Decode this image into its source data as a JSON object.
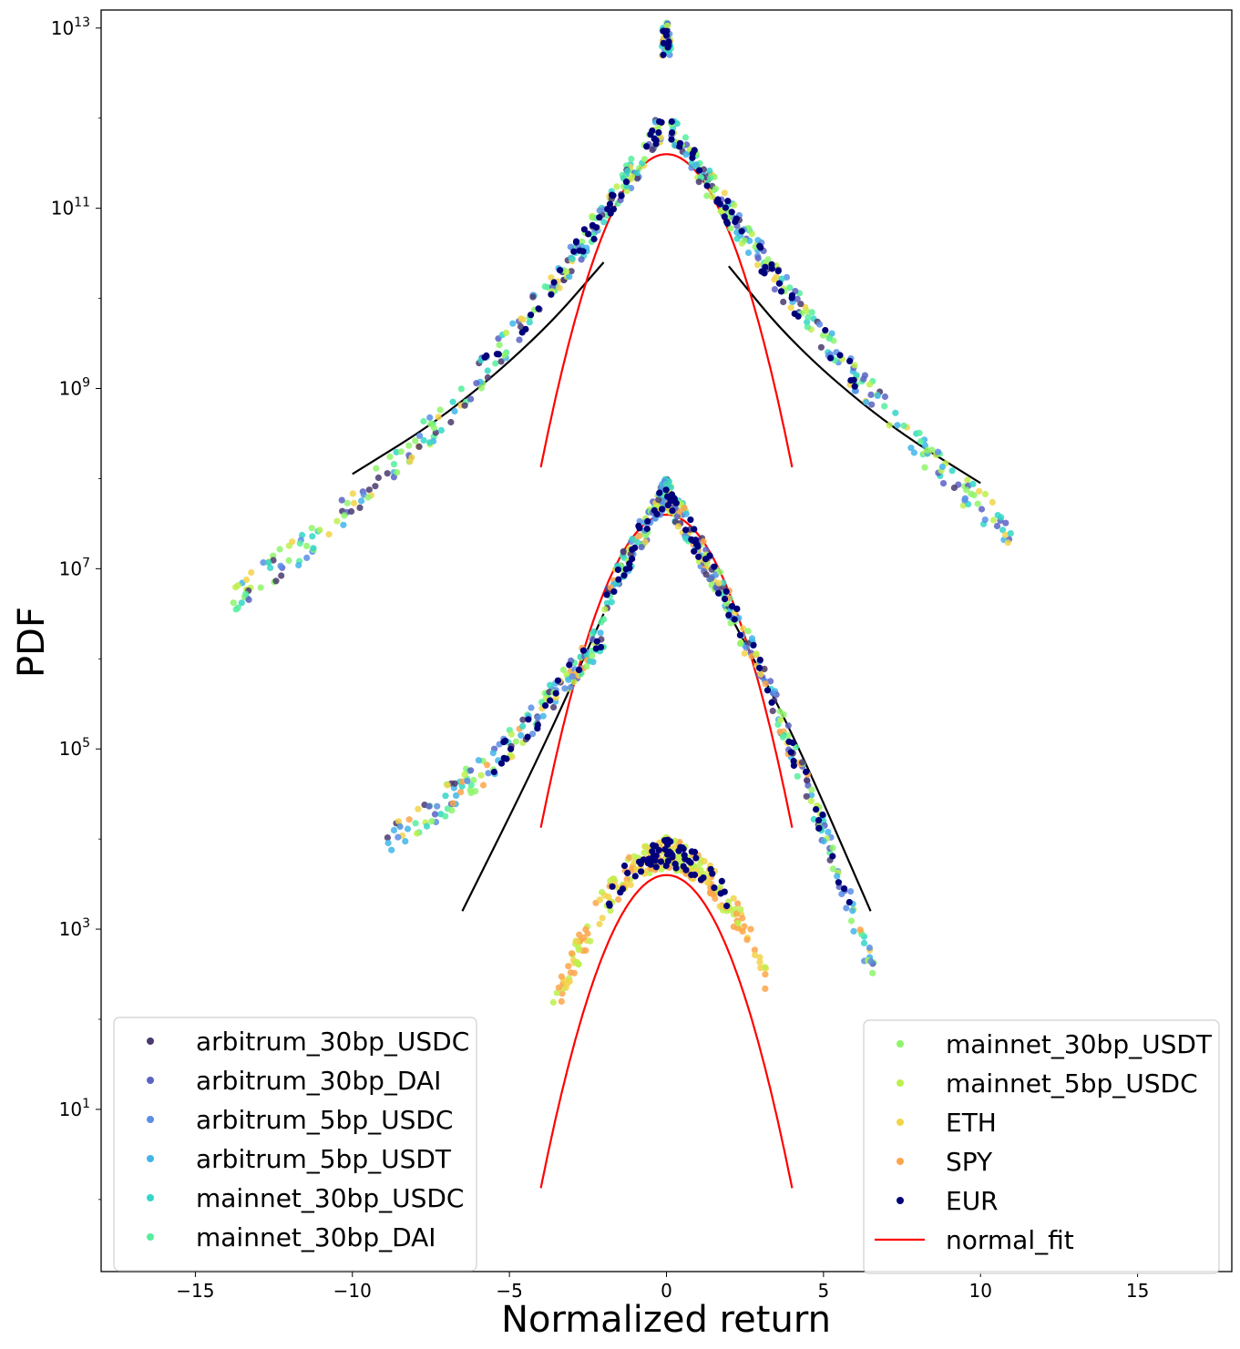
{
  "chart_data": {
    "type": "scatter",
    "title": "",
    "xlabel": "Normalized return",
    "ylabel": "PDF",
    "xlim": [
      -18,
      18
    ],
    "ylim_log10": [
      -0.8,
      13.2
    ],
    "y_scale": "log",
    "x_ticks": [
      {
        "v": -15,
        "label": "−15"
      },
      {
        "v": -10,
        "label": "−10"
      },
      {
        "v": -5,
        "label": "−5"
      },
      {
        "v": 0,
        "label": "0"
      },
      {
        "v": 5,
        "label": "5"
      },
      {
        "v": 10,
        "label": "10"
      },
      {
        "v": 15,
        "label": "15"
      }
    ],
    "y_ticks": [
      {
        "exp": 1,
        "base": "10",
        "sup": "1"
      },
      {
        "exp": 3,
        "base": "10",
        "sup": "3"
      },
      {
        "exp": 5,
        "base": "10",
        "sup": "5"
      },
      {
        "exp": 7,
        "base": "10",
        "sup": "7"
      },
      {
        "exp": 9,
        "base": "10",
        "sup": "9"
      },
      {
        "exp": 11,
        "base": "10",
        "sup": "11"
      },
      {
        "exp": 13,
        "base": "10",
        "sup": "13"
      }
    ],
    "grid": false,
    "series": [
      {
        "name": "arbitrum_30bp_USDC",
        "color": "#4a3a6e",
        "group": "top"
      },
      {
        "name": "arbitrum_30bp_DAI",
        "color": "#5a63c4",
        "group": "top"
      },
      {
        "name": "arbitrum_5bp_USDC",
        "color": "#5b8ee6",
        "group": "top"
      },
      {
        "name": "arbitrum_5bp_USDT",
        "color": "#41b5ea",
        "group": "top"
      },
      {
        "name": "mainnet_30bp_USDC",
        "color": "#33d6c8",
        "group": "top"
      },
      {
        "name": "mainnet_30bp_DAI",
        "color": "#55ef9c",
        "group": "top"
      },
      {
        "name": "mainnet_30bp_USDT",
        "color": "#8ef56a",
        "group": "middle"
      },
      {
        "name": "mainnet_5bp_USDC",
        "color": "#bdf04c",
        "group": "middle"
      },
      {
        "name": "ETH",
        "color": "#f2d44a",
        "group": "middle"
      },
      {
        "name": "SPY",
        "color": "#fda54a",
        "group": "bottom"
      },
      {
        "name": "EUR",
        "color": "#00007a",
        "group": "all"
      }
    ],
    "groups": {
      "top": {
        "scale_log10": 11.6,
        "std": 1.0,
        "tail_scale": 0.7,
        "normal_peak_log10": 11.6
      },
      "middle": {
        "scale_log10": 7.6,
        "std": 1.0,
        "tail_scale": 0.5,
        "normal_peak_log10": 7.6
      },
      "bottom": {
        "scale_log10": 3.6,
        "std": 1.0,
        "normal_peak_log10": 3.6
      }
    },
    "normal_fit": [
      {
        "peak_log10": 11.6,
        "x_range": [
          -4,
          4
        ]
      },
      {
        "peak_log10": 7.6,
        "x_range": [
          -4,
          4
        ]
      },
      {
        "peak_log10": 3.6,
        "x_range": [
          -4,
          4
        ]
      }
    ],
    "tail_fits": [
      {
        "group": "top",
        "points": [
          [
            -10,
            8.05
          ],
          [
            -7,
            8.7
          ],
          [
            -4,
            9.6
          ],
          [
            -2,
            10.4
          ]
        ]
      },
      {
        "group": "top",
        "points": [
          [
            2,
            10.35
          ],
          [
            4,
            9.5
          ],
          [
            7,
            8.6
          ],
          [
            10,
            7.95
          ]
        ]
      },
      {
        "group": "middle",
        "points": [
          [
            -6.5,
            3.2
          ],
          [
            -4,
            4.95
          ],
          [
            -2,
            6.5
          ]
        ]
      },
      {
        "group": "middle",
        "points": [
          [
            2,
            6.5
          ],
          [
            4,
            5.2
          ],
          [
            6.5,
            3.2
          ]
        ]
      }
    ],
    "legend_left": [
      "arbitrum_30bp_USDC",
      "arbitrum_30bp_DAI",
      "arbitrum_5bp_USDC",
      "arbitrum_5bp_USDT",
      "mainnet_30bp_USDC",
      "mainnet_30bp_DAI"
    ],
    "legend_right": [
      "mainnet_30bp_USDT",
      "mainnet_5bp_USDC",
      "ETH",
      "SPY",
      "EUR",
      "normal_fit"
    ],
    "legend_placement": "lower-left and lower-right",
    "normal_fit_color": "#ff0000",
    "tail_fit_color": "#000000"
  }
}
